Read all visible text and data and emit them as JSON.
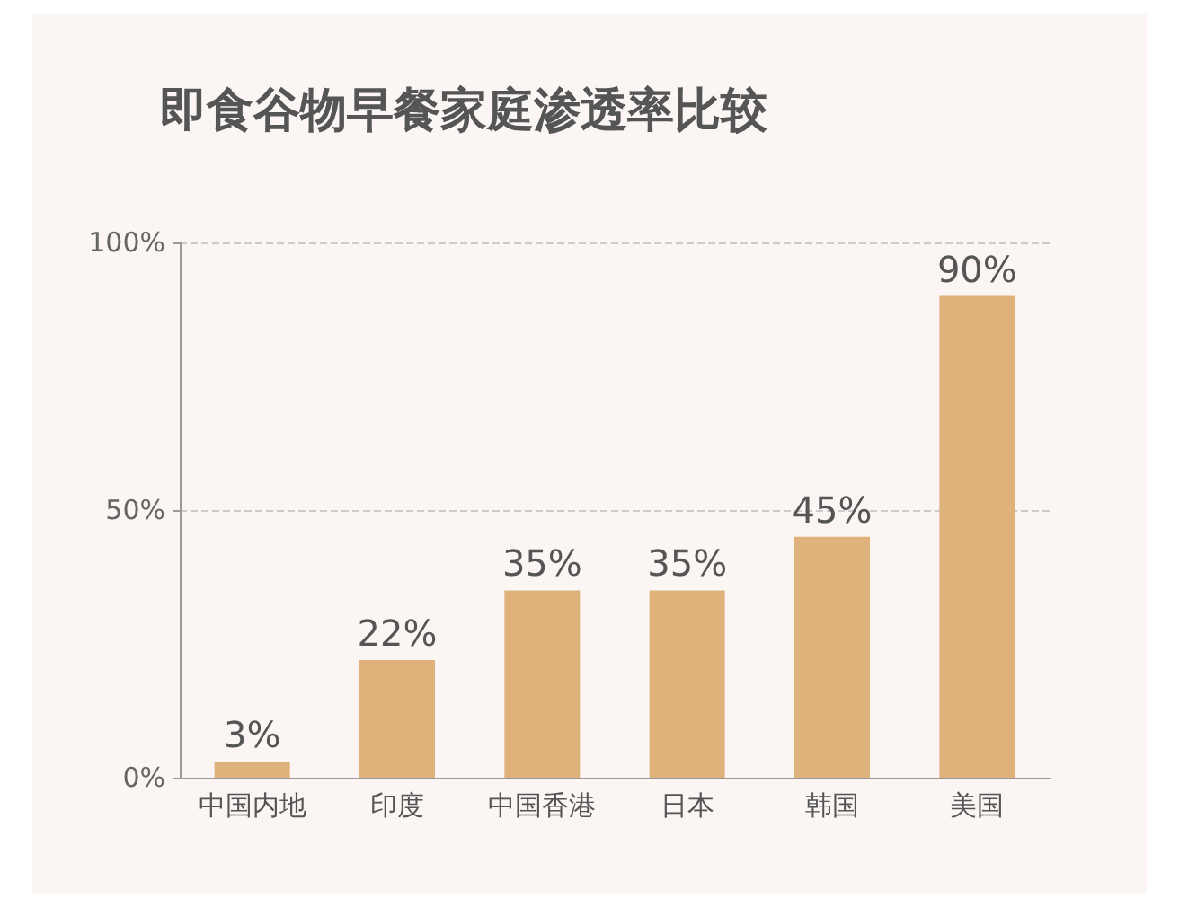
{
  "chart_data": {
    "type": "bar",
    "title": "即食谷物早餐家庭渗透率比较",
    "categories": [
      "中国内地",
      "印度",
      "中国香港",
      "日本",
      "韩国",
      "美国"
    ],
    "values": [
      3,
      22,
      35,
      35,
      45,
      90
    ],
    "value_labels": [
      "3%",
      "22%",
      "35%",
      "35%",
      "45%",
      "90%"
    ],
    "color": "#deb27a",
    "ylim": [
      0,
      100
    ],
    "yticks": [
      {
        "value": 0,
        "label": "0%"
      },
      {
        "value": 50,
        "label": "50%"
      },
      {
        "value": 100,
        "label": "100%"
      }
    ],
    "grid": "y"
  }
}
